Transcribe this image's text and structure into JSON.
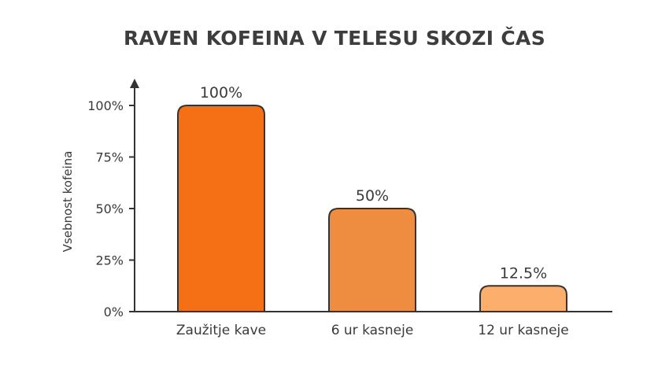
{
  "chart_data": {
    "type": "bar",
    "title": "RAVEN KOFEINA V TELESU SKOZI ČAS",
    "xlabel": "",
    "ylabel": "Vsebnost kofeina",
    "categories": [
      "Zaužitje kave",
      "6 ur kasneje",
      "12 ur kasneje"
    ],
    "values": [
      100,
      50,
      12.5
    ],
    "data_labels": [
      "100%",
      "50%",
      "12.5%"
    ],
    "ylim": [
      0,
      100
    ],
    "yticks": [
      0,
      25,
      50,
      75,
      100
    ],
    "ytick_labels": [
      "0%",
      "25%",
      "50%",
      "75%",
      "100%"
    ],
    "grid": false,
    "colors": [
      "#f56f14",
      "#ee8d3f",
      "#fcae6c"
    ],
    "stroke_color": "#333333"
  }
}
